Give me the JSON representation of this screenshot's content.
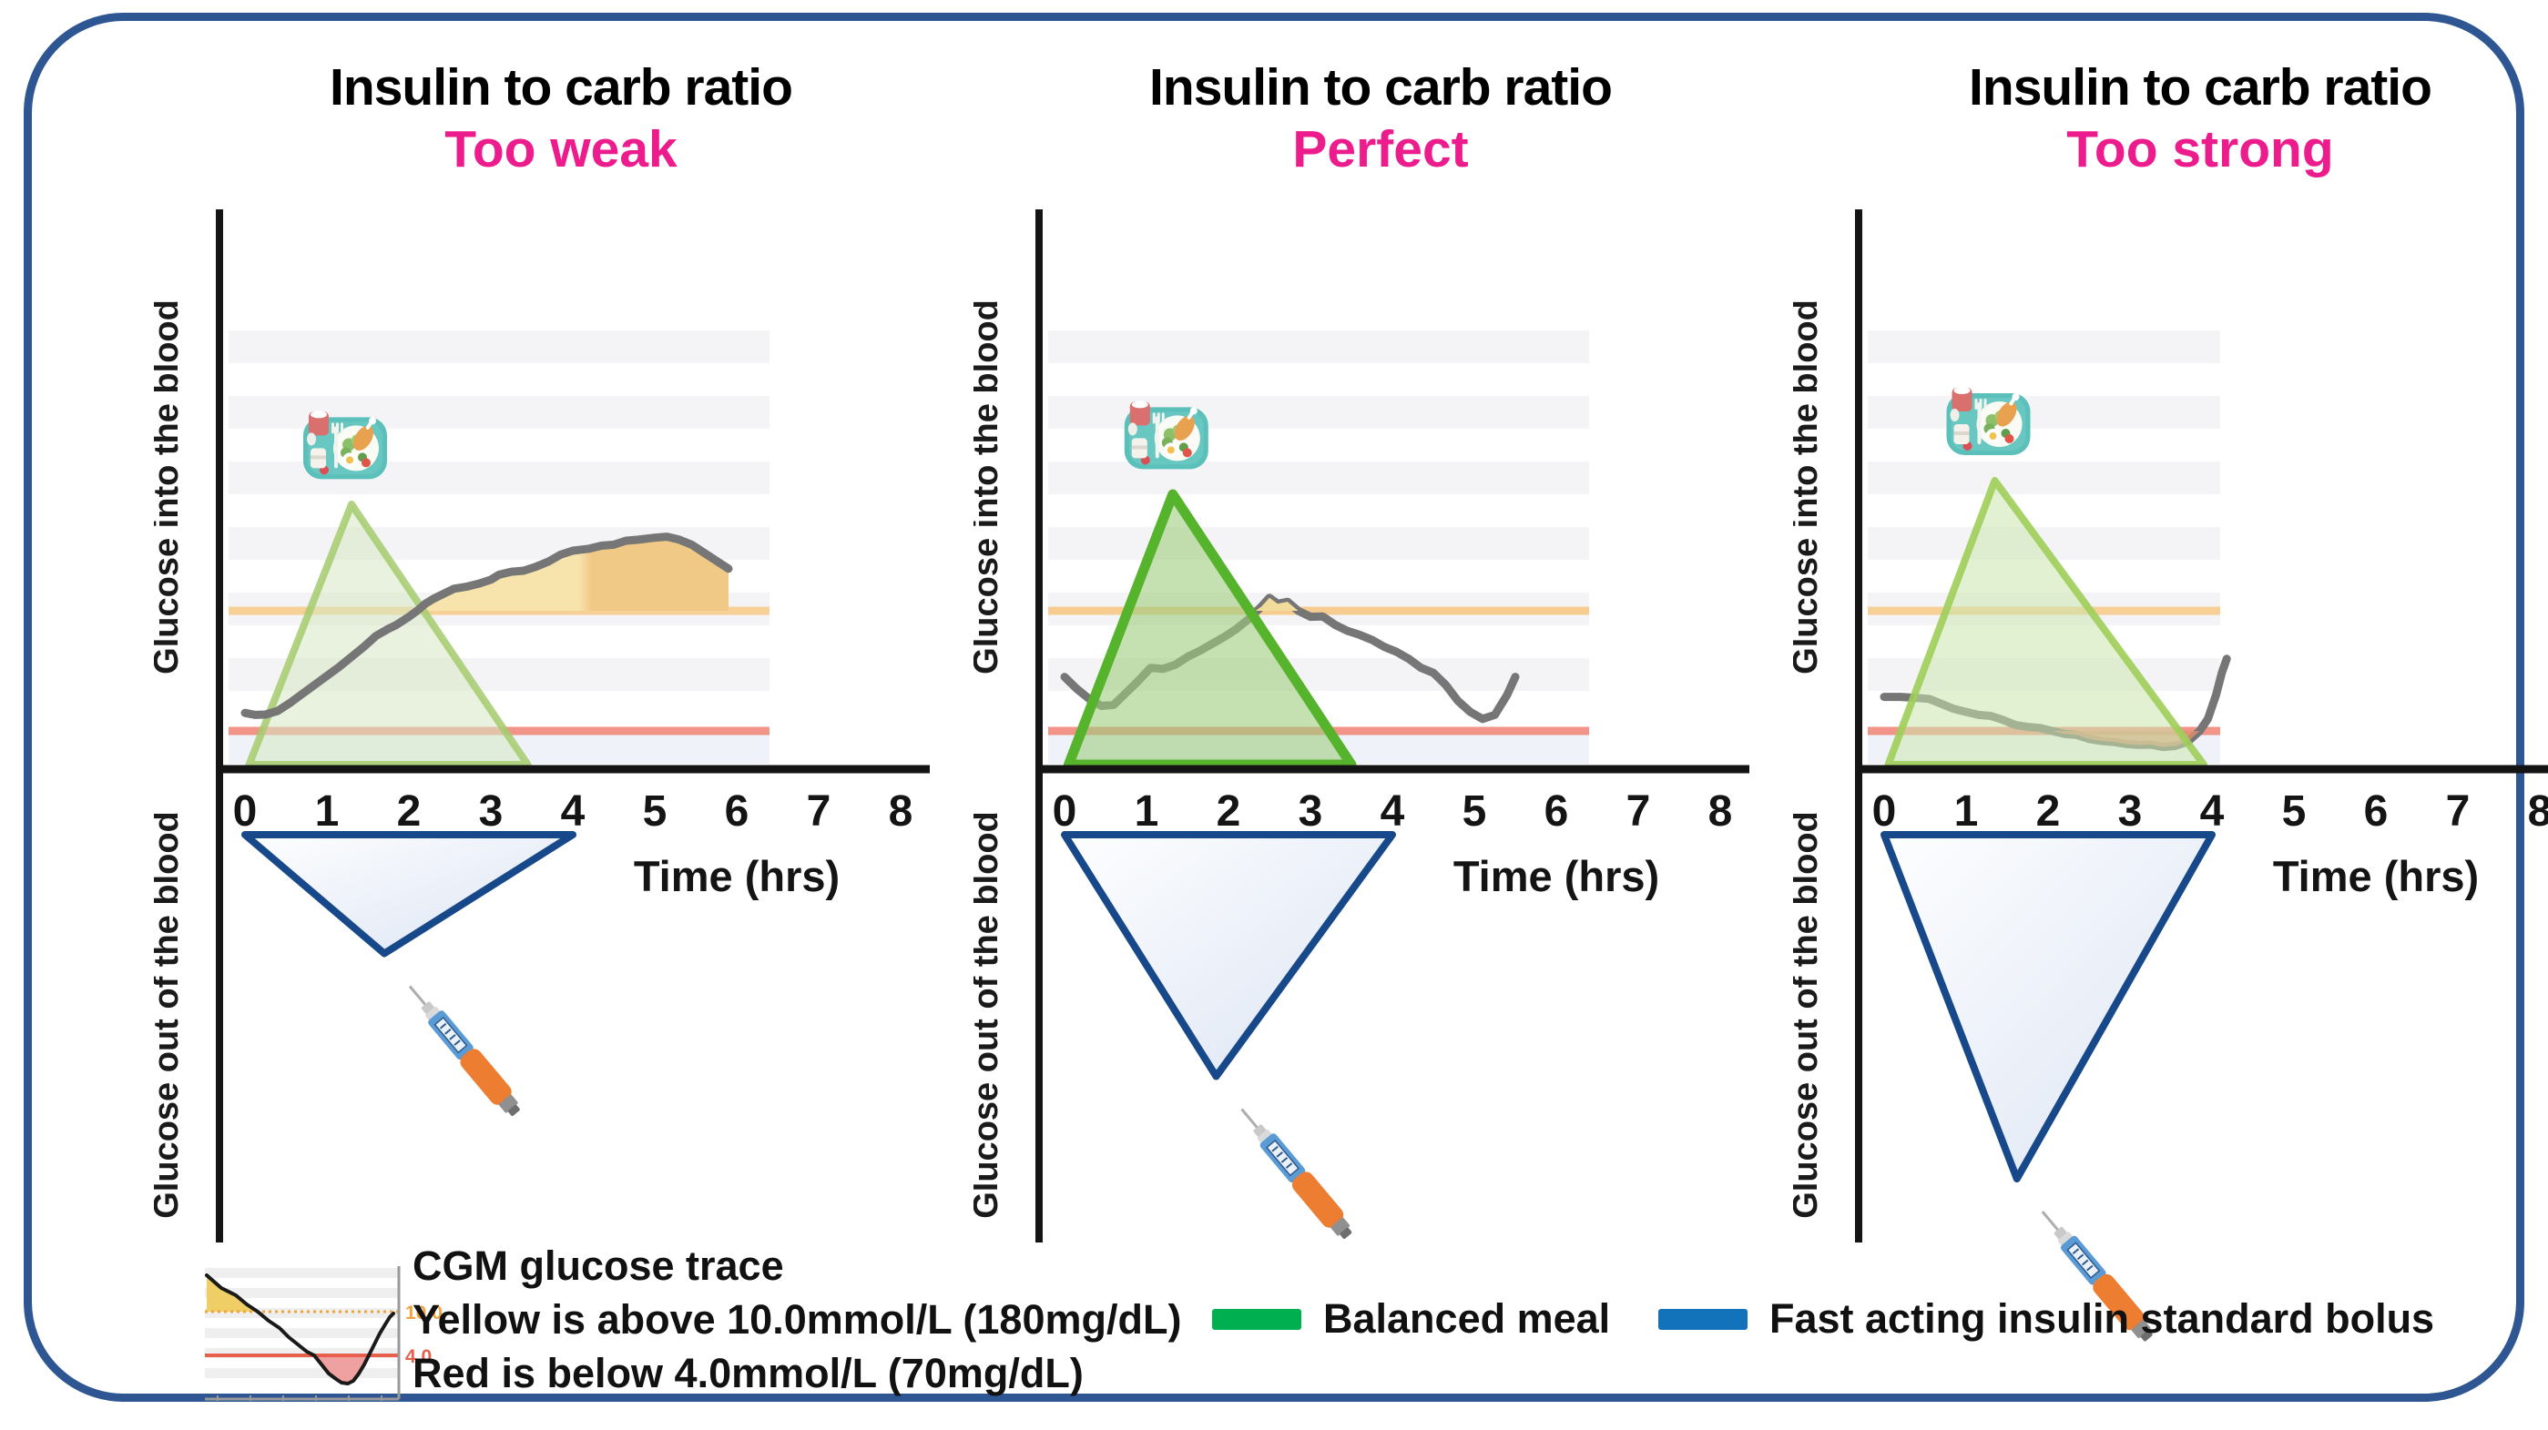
{
  "figure": {
    "panels": [
      {
        "title": "Insulin to carb ratio",
        "subtitle": "Too weak"
      },
      {
        "title": "Insulin to carb ratio",
        "subtitle": "Perfect"
      },
      {
        "title": "Insulin to carb ratio",
        "subtitle": "Too strong"
      }
    ],
    "axis": {
      "y_label_top": "Glucose into the blood",
      "y_label_bottom": "Glucose out of the blood",
      "x_label": "Time (hrs)",
      "x_ticks": [
        "0",
        "1",
        "2",
        "3",
        "4",
        "5",
        "6",
        "7",
        "8"
      ]
    }
  },
  "chart_data": [
    {
      "type": "line",
      "panel": "Too weak",
      "xlabel": "Time (hrs)",
      "x_ticks": [
        0,
        1,
        2,
        3,
        4,
        5,
        6,
        7,
        8
      ],
      "xlim": [
        0,
        8
      ],
      "thresholds": {
        "high_mmol": 10.0,
        "low_mmol": 4.0,
        "extent_hr": 6.4,
        "high_color": "#F5CD90",
        "low_color": "#F08173"
      },
      "background_extent_hr": 6.4,
      "cgm_trace": [
        [
          0,
          4.9
        ],
        [
          0.12,
          4.8
        ],
        [
          0.25,
          4.82
        ],
        [
          0.4,
          5.0
        ],
        [
          0.55,
          5.4
        ],
        [
          0.7,
          5.85
        ],
        [
          0.85,
          6.3
        ],
        [
          1.0,
          6.75
        ],
        [
          1.15,
          7.2
        ],
        [
          1.3,
          7.7
        ],
        [
          1.45,
          8.2
        ],
        [
          1.6,
          8.75
        ],
        [
          1.75,
          9.1
        ],
        [
          1.85,
          9.3
        ],
        [
          2.0,
          9.7
        ],
        [
          2.1,
          10.0
        ],
        [
          2.2,
          10.35
        ],
        [
          2.3,
          10.6
        ],
        [
          2.45,
          10.9
        ],
        [
          2.55,
          11.1
        ],
        [
          2.7,
          11.2
        ],
        [
          2.85,
          11.35
        ],
        [
          3.0,
          11.55
        ],
        [
          3.1,
          11.8
        ],
        [
          3.25,
          11.95
        ],
        [
          3.4,
          12.0
        ],
        [
          3.55,
          12.2
        ],
        [
          3.7,
          12.45
        ],
        [
          3.85,
          12.8
        ],
        [
          4.0,
          13.0
        ],
        [
          4.2,
          13.1
        ],
        [
          4.35,
          13.25
        ],
        [
          4.5,
          13.3
        ],
        [
          4.65,
          13.5
        ],
        [
          4.8,
          13.55
        ],
        [
          5.0,
          13.65
        ],
        [
          5.15,
          13.7
        ],
        [
          5.3,
          13.55
        ],
        [
          5.45,
          13.3
        ],
        [
          5.6,
          12.9
        ],
        [
          5.75,
          12.5
        ],
        [
          5.9,
          12.1
        ]
      ],
      "above_high_fill": {
        "from_hr": 2.1,
        "to_hr": 5.9,
        "color_left": "#F7E3AC",
        "color_right": "#F1C987"
      },
      "below_low_fill": null,
      "balanced_meal_triangle": {
        "start_hr": 0.05,
        "peak_hr": 1.3,
        "end_hr": 3.45,
        "peak_value": 15.3,
        "fill": "#D5E8C2",
        "fill_opacity": 0.55,
        "stroke": "#A5CB6D",
        "stroke_opacity": 0.85,
        "stroke_width": 8
      },
      "insulin_bolus_triangle": {
        "start_hr": 0,
        "end_hr": 4,
        "apex_hr": 1.7,
        "depth_hr": 1.45
      },
      "trace_above_meal_triangle": true
    },
    {
      "type": "line",
      "panel": "Perfect",
      "xlabel": "Time (hrs)",
      "x_ticks": [
        0,
        1,
        2,
        3,
        4,
        5,
        6,
        7,
        8
      ],
      "xlim": [
        0,
        8
      ],
      "thresholds": {
        "high_mmol": 10.0,
        "low_mmol": 4.0,
        "extent_hr": 6.4,
        "high_color": "#F5C98B",
        "low_color": "#F08173"
      },
      "background_extent_hr": 6.4,
      "cgm_trace": [
        [
          0,
          6.7
        ],
        [
          0.15,
          6.1
        ],
        [
          0.3,
          5.6
        ],
        [
          0.45,
          5.25
        ],
        [
          0.6,
          5.3
        ],
        [
          0.75,
          5.9
        ],
        [
          0.9,
          6.5
        ],
        [
          1.05,
          7.15
        ],
        [
          1.2,
          7.1
        ],
        [
          1.35,
          7.3
        ],
        [
          1.5,
          7.7
        ],
        [
          1.65,
          8.0
        ],
        [
          1.8,
          8.35
        ],
        [
          1.95,
          8.7
        ],
        [
          2.1,
          9.1
        ],
        [
          2.25,
          9.6
        ],
        [
          2.4,
          10.2
        ],
        [
          2.5,
          10.65
        ],
        [
          2.6,
          10.35
        ],
        [
          2.72,
          10.45
        ],
        [
          2.85,
          10.0
        ],
        [
          3.0,
          9.7
        ],
        [
          3.15,
          9.72
        ],
        [
          3.3,
          9.3
        ],
        [
          3.45,
          9.0
        ],
        [
          3.6,
          8.8
        ],
        [
          3.75,
          8.55
        ],
        [
          3.9,
          8.2
        ],
        [
          4.05,
          7.95
        ],
        [
          4.2,
          7.6
        ],
        [
          4.35,
          7.15
        ],
        [
          4.5,
          6.9
        ],
        [
          4.65,
          6.3
        ],
        [
          4.8,
          5.5
        ],
        [
          4.95,
          4.95
        ],
        [
          5.1,
          4.6
        ],
        [
          5.25,
          4.8
        ],
        [
          5.4,
          5.8
        ],
        [
          5.5,
          6.7
        ]
      ],
      "above_high_fill": {
        "from_hr": 2.33,
        "to_hr": 2.85,
        "color_left": "#F2DC9B",
        "color_right": "#F2DC9B"
      },
      "below_low_fill": null,
      "balanced_meal_triangle": {
        "start_hr": 0.05,
        "peak_hr": 1.32,
        "end_hr": 3.5,
        "peak_value": 15.8,
        "fill": "#9FCD7F",
        "fill_opacity": 0.6,
        "stroke": "#55B32C",
        "stroke_opacity": 1,
        "stroke_width": 11
      },
      "insulin_bolus_triangle": {
        "start_hr": 0,
        "end_hr": 4,
        "apex_hr": 1.85,
        "depth_hr": 2.95
      },
      "trace_above_meal_triangle": false
    },
    {
      "type": "line",
      "panel": "Too strong",
      "xlabel": "Time (hrs)",
      "x_ticks": [
        0,
        1,
        2,
        3,
        4,
        5,
        6,
        7,
        8
      ],
      "xlim": [
        0,
        8
      ],
      "thresholds": {
        "high_mmol": 10.0,
        "low_mmol": 4.0,
        "extent_hr": 4.1,
        "high_color": "#F5CD90",
        "low_color": "#F08173"
      },
      "background_extent_hr": 4.1,
      "cgm_trace": [
        [
          0,
          5.7
        ],
        [
          0.2,
          5.7
        ],
        [
          0.4,
          5.65
        ],
        [
          0.55,
          5.6
        ],
        [
          0.7,
          5.35
        ],
        [
          0.85,
          5.1
        ],
        [
          1.0,
          4.95
        ],
        [
          1.15,
          4.8
        ],
        [
          1.3,
          4.75
        ],
        [
          1.45,
          4.55
        ],
        [
          1.6,
          4.3
        ],
        [
          1.75,
          4.2
        ],
        [
          1.9,
          4.15
        ],
        [
          2.05,
          4.0
        ],
        [
          2.2,
          3.85
        ],
        [
          2.35,
          3.8
        ],
        [
          2.5,
          3.6
        ],
        [
          2.65,
          3.5
        ],
        [
          2.8,
          3.45
        ],
        [
          2.95,
          3.35
        ],
        [
          3.1,
          3.3
        ],
        [
          3.25,
          3.32
        ],
        [
          3.4,
          3.2
        ],
        [
          3.55,
          3.25
        ],
        [
          3.7,
          3.45
        ],
        [
          3.85,
          4.0
        ],
        [
          3.95,
          4.6
        ],
        [
          4.05,
          5.8
        ],
        [
          4.12,
          6.9
        ],
        [
          4.18,
          7.6
        ]
      ],
      "above_high_fill": null,
      "below_low_fill": {
        "from_hr": 2.05,
        "to_hr": 3.85,
        "color": "#DC9070"
      },
      "balanced_meal_triangle": {
        "start_hr": 0.05,
        "peak_hr": 1.35,
        "end_hr": 3.9,
        "peak_value": 16.5,
        "fill": "#CCE5AE",
        "fill_opacity": 0.55,
        "stroke": "#9FCE59",
        "stroke_opacity": 0.9,
        "stroke_width": 8
      },
      "insulin_bolus_triangle": {
        "start_hr": 0,
        "end_hr": 4,
        "apex_hr": 1.62,
        "depth_hr": 4.2
      },
      "trace_above_meal_triangle": false
    }
  ],
  "legend": {
    "cgm": {
      "title": "CGM glucose trace",
      "high_note": "Yellow is above 10.0mmol/L (180mg/dL)",
      "low_note": "Red is below 4.0mmol/L (70mg/dL)",
      "high_label": "10.0",
      "low_label": "4.0"
    },
    "items": [
      {
        "label": "Balanced meal",
        "color": "#00B050"
      },
      {
        "label": "Fast acting insulin standard bolus",
        "color": "#1272BA"
      }
    ]
  },
  "colors": {
    "frame_border": "#2E5693",
    "subtitle_pink": "#EC1C8D",
    "cgm_trace": "#767676",
    "insulin_triangle_stroke": "#17498A",
    "high_line": "#F5CD90",
    "low_line": "#F08173"
  }
}
